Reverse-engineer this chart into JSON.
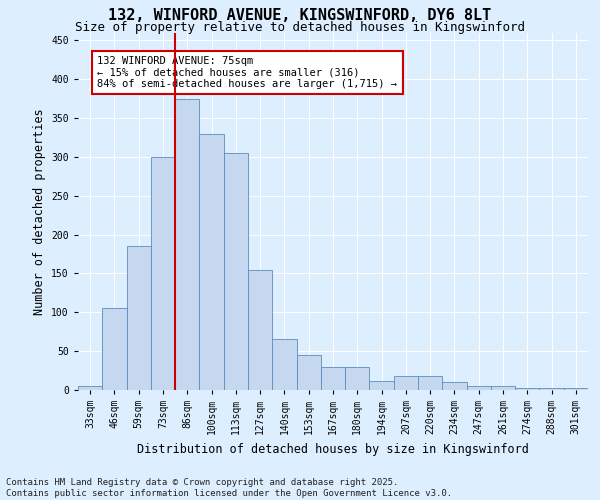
{
  "title_line1": "132, WINFORD AVENUE, KINGSWINFORD, DY6 8LT",
  "title_line2": "Size of property relative to detached houses in Kingswinford",
  "xlabel": "Distribution of detached houses by size in Kingswinford",
  "ylabel": "Number of detached properties",
  "categories": [
    "33sqm",
    "46sqm",
    "59sqm",
    "73sqm",
    "86sqm",
    "100sqm",
    "113sqm",
    "127sqm",
    "140sqm",
    "153sqm",
    "167sqm",
    "180sqm",
    "194sqm",
    "207sqm",
    "220sqm",
    "234sqm",
    "247sqm",
    "261sqm",
    "274sqm",
    "288sqm",
    "301sqm"
  ],
  "values": [
    5,
    105,
    185,
    300,
    375,
    330,
    305,
    155,
    65,
    45,
    30,
    30,
    12,
    18,
    18,
    10,
    5,
    5,
    3,
    3,
    3
  ],
  "bar_color": "#c5d8f0",
  "bar_edge_color": "#5b8dc0",
  "vline_x_index": 3,
  "vline_color": "#cc0000",
  "annotation_text": "132 WINFORD AVENUE: 75sqm\n← 15% of detached houses are smaller (316)\n84% of semi-detached houses are larger (1,715) →",
  "annotation_box_color": "#cc0000",
  "annotation_text_color": "#000000",
  "ylim": [
    0,
    460
  ],
  "yticks": [
    0,
    50,
    100,
    150,
    200,
    250,
    300,
    350,
    400,
    450
  ],
  "background_color": "#ddeeff",
  "plot_bg_color": "#ddeeff",
  "grid_color": "#ffffff",
  "footer_line1": "Contains HM Land Registry data © Crown copyright and database right 2025.",
  "footer_line2": "Contains public sector information licensed under the Open Government Licence v3.0.",
  "title_fontsize": 11,
  "subtitle_fontsize": 9,
  "axis_label_fontsize": 8.5,
  "tick_fontsize": 7,
  "annotation_fontsize": 7.5,
  "footer_fontsize": 6.5
}
